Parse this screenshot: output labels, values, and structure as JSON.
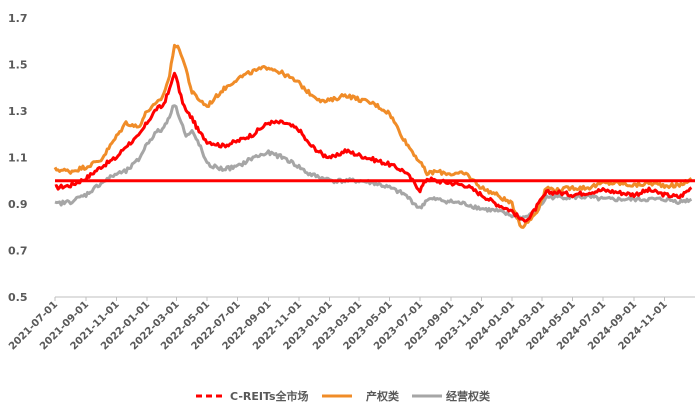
{
  "chart_data": {
    "type": "line",
    "title": "",
    "xlabel": "",
    "ylabel": "",
    "ylim": [
      0.5,
      1.7
    ],
    "yticks": [
      "1.7",
      "1.5",
      "1.3",
      "1.1",
      "0.9",
      "0.7",
      "0.5"
    ],
    "xticks": [
      "2021-07-01",
      "2021-09-01",
      "2021-11-01",
      "2022-01-01",
      "2022-03-01",
      "2022-05-01",
      "2022-07-01",
      "2022-09-01",
      "2022-11-01",
      "2023-01-01",
      "2023-03-01",
      "2023-05-01",
      "2023-07-01",
      "2023-09-01",
      "2023-11-01",
      "2024-01-01",
      "2024-03-01",
      "2024-05-01",
      "2024-07-01",
      "2024-09-01",
      "2024-11-01"
    ],
    "xlim": [
      "2021-07-01",
      "2025-01-01"
    ],
    "grid": false,
    "legend": "bottom",
    "reference_line": {
      "value": 1.0,
      "color": "#FF0000"
    },
    "series": [
      {
        "name": "C-REITs全市场",
        "color": "#FF0000",
        "style": "dashed",
        "points": [
          [
            "2021-07-01",
            0.97
          ],
          [
            "2021-08-01",
            0.98
          ],
          [
            "2021-09-01",
            1.01
          ],
          [
            "2021-10-01",
            1.06
          ],
          [
            "2021-11-01",
            1.1
          ],
          [
            "2021-11-20",
            1.15
          ],
          [
            "2021-12-15",
            1.19
          ],
          [
            "2022-01-01",
            1.25
          ],
          [
            "2022-01-20",
            1.31
          ],
          [
            "2022-02-01",
            1.32
          ],
          [
            "2022-02-15",
            1.39
          ],
          [
            "2022-02-25",
            1.47
          ],
          [
            "2022-03-10",
            1.36
          ],
          [
            "2022-03-20",
            1.3
          ],
          [
            "2022-04-01",
            1.27
          ],
          [
            "2022-04-15",
            1.21
          ],
          [
            "2022-05-01",
            1.17
          ],
          [
            "2022-06-01",
            1.15
          ],
          [
            "2022-07-01",
            1.17
          ],
          [
            "2022-08-01",
            1.2
          ],
          [
            "2022-09-01",
            1.25
          ],
          [
            "2022-10-01",
            1.25
          ],
          [
            "2022-11-01",
            1.22
          ],
          [
            "2022-11-20",
            1.16
          ],
          [
            "2022-12-20",
            1.11
          ],
          [
            "2023-01-10",
            1.1
          ],
          [
            "2023-02-01",
            1.13
          ],
          [
            "2023-03-01",
            1.11
          ],
          [
            "2023-04-01",
            1.09
          ],
          [
            "2023-05-01",
            1.07
          ],
          [
            "2023-06-01",
            1.04
          ],
          [
            "2023-07-01",
            0.96
          ],
          [
            "2023-07-15",
            1.01
          ],
          [
            "2023-08-01",
            1.0
          ],
          [
            "2023-09-01",
            0.99
          ],
          [
            "2023-10-01",
            0.98
          ],
          [
            "2023-11-01",
            0.94
          ],
          [
            "2023-12-01",
            0.9
          ],
          [
            "2024-01-01",
            0.87
          ],
          [
            "2024-01-20",
            0.83
          ],
          [
            "2024-02-05",
            0.84
          ],
          [
            "2024-02-20",
            0.89
          ],
          [
            "2024-03-10",
            0.95
          ],
          [
            "2024-04-01",
            0.95
          ],
          [
            "2024-05-01",
            0.94
          ],
          [
            "2024-06-01",
            0.95
          ],
          [
            "2024-07-01",
            0.96
          ],
          [
            "2024-08-01",
            0.95
          ],
          [
            "2024-09-01",
            0.94
          ],
          [
            "2024-10-01",
            0.96
          ],
          [
            "2024-11-01",
            0.94
          ],
          [
            "2024-12-01",
            0.93
          ],
          [
            "2024-12-25",
            0.97
          ]
        ]
      },
      {
        "name": "产权类",
        "color": "#F08C28",
        "style": "solid",
        "points": [
          [
            "2021-07-01",
            1.05
          ],
          [
            "2021-08-01",
            1.04
          ],
          [
            "2021-09-01",
            1.06
          ],
          [
            "2021-10-01",
            1.09
          ],
          [
            "2021-11-01",
            1.19
          ],
          [
            "2021-11-20",
            1.25
          ],
          [
            "2021-12-15",
            1.23
          ],
          [
            "2022-01-01",
            1.3
          ],
          [
            "2022-01-20",
            1.33
          ],
          [
            "2022-02-01",
            1.36
          ],
          [
            "2022-02-15",
            1.45
          ],
          [
            "2022-02-25",
            1.59
          ],
          [
            "2022-03-10",
            1.55
          ],
          [
            "2022-03-20",
            1.48
          ],
          [
            "2022-04-01",
            1.38
          ],
          [
            "2022-04-15",
            1.35
          ],
          [
            "2022-05-01",
            1.32
          ],
          [
            "2022-06-01",
            1.39
          ],
          [
            "2022-07-01",
            1.44
          ],
          [
            "2022-08-01",
            1.47
          ],
          [
            "2022-09-01",
            1.49
          ],
          [
            "2022-10-01",
            1.46
          ],
          [
            "2022-11-01",
            1.42
          ],
          [
            "2022-11-20",
            1.38
          ],
          [
            "2022-12-20",
            1.34
          ],
          [
            "2023-01-10",
            1.35
          ],
          [
            "2023-02-01",
            1.37
          ],
          [
            "2023-03-01",
            1.35
          ],
          [
            "2023-04-01",
            1.33
          ],
          [
            "2023-05-01",
            1.29
          ],
          [
            "2023-06-01",
            1.17
          ],
          [
            "2023-07-01",
            1.08
          ],
          [
            "2023-07-15",
            1.03
          ],
          [
            "2023-08-01",
            1.04
          ],
          [
            "2023-09-01",
            1.03
          ],
          [
            "2023-10-01",
            1.03
          ],
          [
            "2023-11-01",
            0.97
          ],
          [
            "2023-12-01",
            0.94
          ],
          [
            "2024-01-01",
            0.9
          ],
          [
            "2024-01-20",
            0.8
          ],
          [
            "2024-02-05",
            0.83
          ],
          [
            "2024-02-20",
            0.87
          ],
          [
            "2024-03-10",
            0.97
          ],
          [
            "2024-04-01",
            0.96
          ],
          [
            "2024-05-01",
            0.97
          ],
          [
            "2024-06-01",
            0.97
          ],
          [
            "2024-07-01",
            0.99
          ],
          [
            "2024-08-01",
            0.99
          ],
          [
            "2024-09-01",
            0.98
          ],
          [
            "2024-10-01",
            0.99
          ],
          [
            "2024-11-01",
            0.98
          ],
          [
            "2024-12-01",
            0.98
          ],
          [
            "2024-12-25",
            1.01
          ]
        ]
      },
      {
        "name": "经营权类",
        "color": "#A6A6A6",
        "style": "solid",
        "points": [
          [
            "2021-07-01",
            0.9
          ],
          [
            "2021-08-01",
            0.91
          ],
          [
            "2021-09-01",
            0.94
          ],
          [
            "2021-10-01",
            0.99
          ],
          [
            "2021-11-01",
            1.03
          ],
          [
            "2021-11-20",
            1.04
          ],
          [
            "2021-12-15",
            1.09
          ],
          [
            "2022-01-01",
            1.16
          ],
          [
            "2022-01-20",
            1.21
          ],
          [
            "2022-02-01",
            1.22
          ],
          [
            "2022-02-15",
            1.28
          ],
          [
            "2022-02-25",
            1.33
          ],
          [
            "2022-03-10",
            1.26
          ],
          [
            "2022-03-20",
            1.19
          ],
          [
            "2022-04-01",
            1.21
          ],
          [
            "2022-04-15",
            1.16
          ],
          [
            "2022-05-01",
            1.07
          ],
          [
            "2022-06-01",
            1.05
          ],
          [
            "2022-07-01",
            1.06
          ],
          [
            "2022-08-01",
            1.1
          ],
          [
            "2022-09-01",
            1.12
          ],
          [
            "2022-10-01",
            1.1
          ],
          [
            "2022-11-01",
            1.06
          ],
          [
            "2022-11-20",
            1.03
          ],
          [
            "2022-12-20",
            1.01
          ],
          [
            "2023-01-10",
            1.0
          ],
          [
            "2023-02-01",
            1.0
          ],
          [
            "2023-03-01",
            1.0
          ],
          [
            "2023-04-01",
            0.99
          ],
          [
            "2023-05-01",
            0.97
          ],
          [
            "2023-06-01",
            0.94
          ],
          [
            "2023-07-01",
            0.88
          ],
          [
            "2023-07-15",
            0.92
          ],
          [
            "2023-08-01",
            0.92
          ],
          [
            "2023-09-01",
            0.91
          ],
          [
            "2023-10-01",
            0.9
          ],
          [
            "2023-11-01",
            0.88
          ],
          [
            "2023-12-01",
            0.87
          ],
          [
            "2024-01-01",
            0.85
          ],
          [
            "2024-01-20",
            0.84
          ],
          [
            "2024-02-05",
            0.85
          ],
          [
            "2024-02-20",
            0.87
          ],
          [
            "2024-03-10",
            0.93
          ],
          [
            "2024-04-01",
            0.93
          ],
          [
            "2024-05-01",
            0.93
          ],
          [
            "2024-06-01",
            0.93
          ],
          [
            "2024-07-01",
            0.92
          ],
          [
            "2024-08-01",
            0.92
          ],
          [
            "2024-09-01",
            0.92
          ],
          [
            "2024-10-01",
            0.92
          ],
          [
            "2024-11-01",
            0.92
          ],
          [
            "2024-12-01",
            0.91
          ],
          [
            "2024-12-25",
            0.92
          ]
        ]
      }
    ]
  }
}
